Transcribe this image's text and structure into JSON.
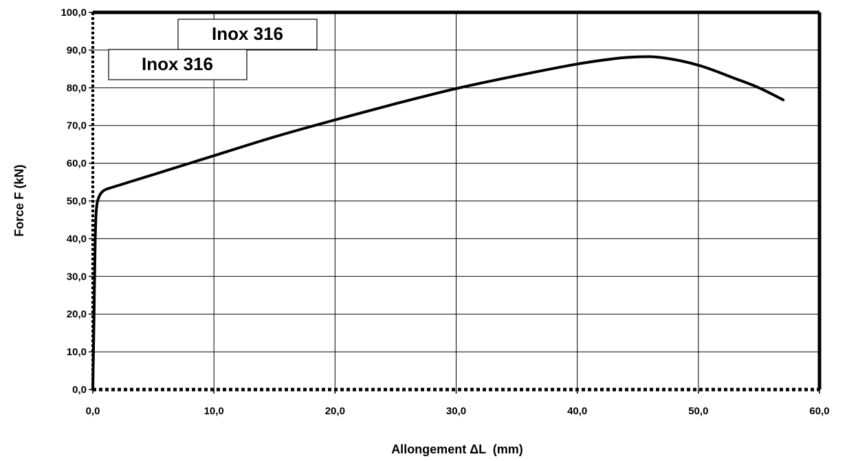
{
  "chart_data": {
    "type": "line",
    "title": "",
    "xlabel": "Allongement ΔL  (mm)",
    "ylabel": "Force F (kN)",
    "xlim": [
      0,
      60
    ],
    "ylim": [
      0,
      100
    ],
    "grid": true,
    "x_ticks": [
      "0,0",
      "10,0",
      "20,0",
      "30,0",
      "40,0",
      "50,0",
      "60,0"
    ],
    "y_ticks": [
      "0,0",
      "10,0",
      "20,0",
      "30,0",
      "40,0",
      "50,0",
      "60,0",
      "70,0",
      "80,0",
      "90,0",
      "100,0"
    ],
    "legend_labels": [
      "Inox 316",
      "Inox 316"
    ],
    "series": [
      {
        "name": "Inox 316",
        "x": [
          0.0,
          0.1,
          0.2,
          0.3,
          0.5,
          0.8,
          1.2,
          2.0,
          3.0,
          5.0,
          8.0,
          10.0,
          15.0,
          20.0,
          25.0,
          30.0,
          35.0,
          40.0,
          43.0,
          45.0,
          47.0,
          50.0,
          53.0,
          55.0,
          57.0
        ],
        "y": [
          0.0,
          20.0,
          40.0,
          48.0,
          51.0,
          52.5,
          53.2,
          54.0,
          55.0,
          57.0,
          60.0,
          62.0,
          67.0,
          71.5,
          75.8,
          79.8,
          83.2,
          86.3,
          87.7,
          88.2,
          88.0,
          86.0,
          82.5,
          80.0,
          76.8
        ]
      }
    ],
    "colors": {
      "line": "#000000",
      "grid": "#000000",
      "background": "#ffffff"
    }
  }
}
